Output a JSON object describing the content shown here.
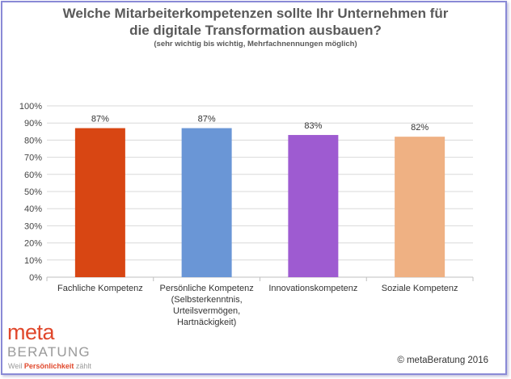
{
  "header": {
    "title_line1": "Welche Mitarbeiterkompetenzen sollte Ihr Unternehmen für",
    "title_line2": "die digitale Transformation ausbauen?",
    "subtitle": "(sehr wichtig bis wichtig, Mehrfachnennungen möglich)"
  },
  "chart_data": {
    "type": "bar",
    "title": "Welche Mitarbeiterkompetenzen sollte Ihr Unternehmen für die digitale Transformation ausbauen?",
    "subtitle": "(sehr wichtig bis wichtig, Mehrfachnennungen möglich)",
    "categories": [
      [
        "Fachliche Kompetenz"
      ],
      [
        "Persönliche Kompetenz",
        "(Selbsterkenntnis,",
        "Urteilsvermögen,",
        "Hartnäckigkeit)"
      ],
      [
        "Innovationskompetenz"
      ],
      [
        "Soziale Kompetenz"
      ]
    ],
    "values": [
      87,
      87,
      83,
      82
    ],
    "data_labels": [
      "87%",
      "87%",
      "83%",
      "82%"
    ],
    "colors": [
      "#d84613",
      "#6a96d6",
      "#9e5bd1",
      "#efb183"
    ],
    "ylim": [
      0,
      100
    ],
    "yticks": [
      0,
      10,
      20,
      30,
      40,
      50,
      60,
      70,
      80,
      90,
      100
    ],
    "ytick_labels": [
      "0%",
      "10%",
      "20%",
      "30%",
      "40%",
      "50%",
      "60%",
      "70%",
      "80%",
      "90%",
      "100%"
    ],
    "xlabel": "",
    "ylabel": "",
    "grid": true,
    "legend": "none"
  },
  "footer": {
    "logo_meta": "meta",
    "logo_beratung": "BERATUNG",
    "logo_tag_pre": "Weil ",
    "logo_tag_highlight": "Persönlichkeit",
    "logo_tag_post": " zählt",
    "copyright": "© metaBeratung 2016"
  }
}
